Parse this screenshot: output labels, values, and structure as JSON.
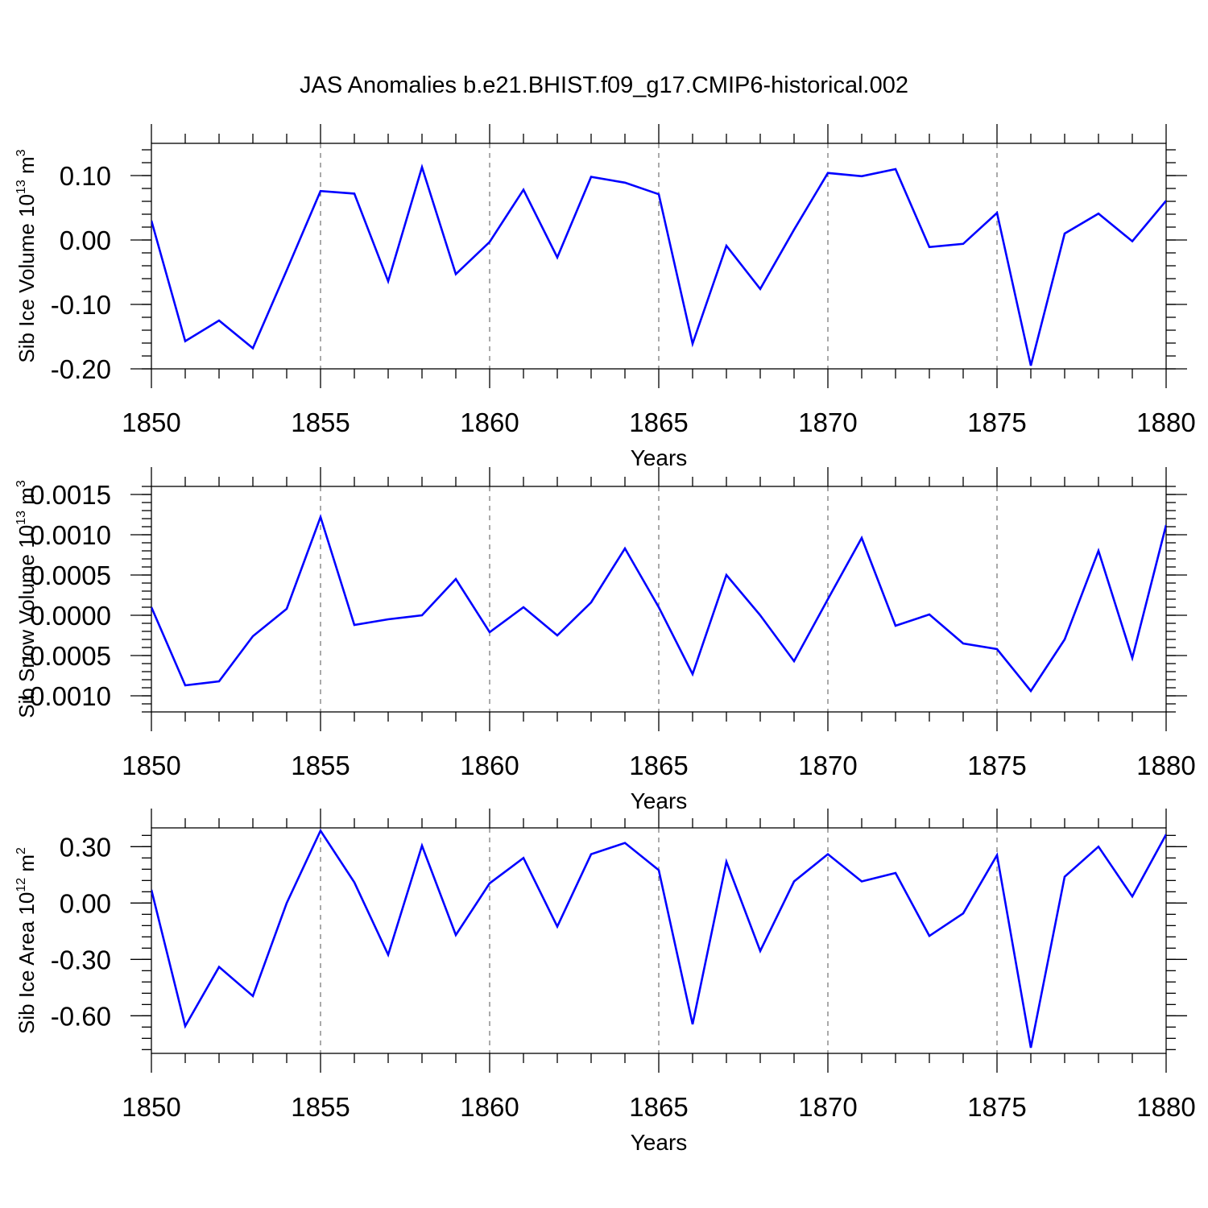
{
  "figure": {
    "title": "JAS Anomalies b.e21.BHIST.f09_g17.CMIP6-historical.002",
    "series_color": "#0000ff"
  },
  "chart_data": [
    {
      "type": "line",
      "title": "JAS Anomalies b.e21.BHIST.f09_g17.CMIP6-historical.002",
      "xlabel": "Years",
      "ylabel": "Sib Ice Volume 10",
      "ylabel_exp": "13",
      "ylabel_unit": " m",
      "ylabel_unit_exp": "3",
      "x": [
        1850,
        1851,
        1852,
        1853,
        1854,
        1855,
        1856,
        1857,
        1858,
        1859,
        1860,
        1861,
        1862,
        1863,
        1864,
        1865,
        1866,
        1867,
        1868,
        1869,
        1870,
        1871,
        1872,
        1873,
        1874,
        1875,
        1876,
        1877,
        1878,
        1879,
        1880
      ],
      "values": [
        0.03,
        -0.157,
        -0.125,
        -0.168,
        -0.047,
        0.076,
        0.072,
        -0.064,
        0.113,
        -0.053,
        -0.003,
        0.078,
        -0.027,
        0.098,
        0.089,
        0.071,
        -0.161,
        -0.009,
        -0.076,
        0.016,
        0.104,
        0.099,
        0.11,
        -0.011,
        -0.006,
        0.042,
        -0.195,
        0.01,
        0.041,
        -0.002,
        0.061
      ],
      "xlim": [
        1850,
        1880
      ],
      "ylim": [
        -0.2,
        0.15
      ],
      "yticks": [
        -0.2,
        -0.1,
        0.0,
        0.1
      ],
      "ytick_labels": [
        "-0.20",
        "-0.10",
        "0.00",
        "0.10"
      ],
      "yminor_step": 0.02,
      "xticks": [
        1850,
        1855,
        1860,
        1865,
        1870,
        1875,
        1880
      ],
      "xtick_labels": [
        "1850",
        "1855",
        "1860",
        "1865",
        "1870",
        "1875",
        "1880"
      ],
      "grid": "vertical dashed"
    },
    {
      "type": "line",
      "xlabel": "Years",
      "ylabel": "Sib Snow Volume 10",
      "ylabel_exp": "13",
      "ylabel_unit": " m",
      "ylabel_unit_exp": "3",
      "x": [
        1850,
        1851,
        1852,
        1853,
        1854,
        1855,
        1856,
        1857,
        1858,
        1859,
        1860,
        1861,
        1862,
        1863,
        1864,
        1865,
        1866,
        1867,
        1868,
        1869,
        1870,
        1871,
        1872,
        1873,
        1874,
        1875,
        1876,
        1877,
        1878,
        1879,
        1880
      ],
      "values": [
        0.0001,
        -0.00087,
        -0.00082,
        -0.00026,
        8e-05,
        0.00122,
        -0.00012,
        -5e-05,
        0.0,
        0.00045,
        -0.00021,
        0.0001,
        -0.00025,
        0.00016,
        0.00083,
        0.0001,
        -0.00073,
        0.0005,
        0.0,
        -0.00057,
        0.0002,
        0.00096,
        -0.00013,
        1e-05,
        -0.00035,
        -0.00042,
        -0.00094,
        -0.0003,
        0.0008,
        -0.00053,
        0.00112
      ],
      "xlim": [
        1850,
        1880
      ],
      "ylim": [
        -0.0012,
        0.0016
      ],
      "yticks": [
        -0.001,
        -0.0005,
        0.0,
        0.0005,
        0.001,
        0.0015
      ],
      "ytick_labels": [
        "-0.0010",
        "-0.0005",
        "0.0000",
        "0.0005",
        "0.0010",
        "0.0015"
      ],
      "yminor_step": 0.0001,
      "xticks": [
        1850,
        1855,
        1860,
        1865,
        1870,
        1875,
        1880
      ],
      "xtick_labels": [
        "1850",
        "1855",
        "1860",
        "1865",
        "1870",
        "1875",
        "1880"
      ],
      "grid": "vertical dashed"
    },
    {
      "type": "line",
      "xlabel": "Years",
      "ylabel": "Sib Ice Area 10",
      "ylabel_exp": "12",
      "ylabel_unit": " m",
      "ylabel_unit_exp": "2",
      "x": [
        1850,
        1851,
        1852,
        1853,
        1854,
        1855,
        1856,
        1857,
        1858,
        1859,
        1860,
        1861,
        1862,
        1863,
        1864,
        1865,
        1866,
        1867,
        1868,
        1869,
        1870,
        1871,
        1872,
        1873,
        1874,
        1875,
        1876,
        1877,
        1878,
        1879,
        1880
      ],
      "values": [
        0.07,
        -0.655,
        -0.34,
        -0.495,
        0.0,
        0.385,
        0.11,
        -0.275,
        0.305,
        -0.17,
        0.105,
        0.24,
        -0.125,
        0.26,
        0.32,
        0.175,
        -0.645,
        0.22,
        -0.255,
        0.115,
        0.26,
        0.115,
        0.16,
        -0.175,
        -0.055,
        0.255,
        -0.77,
        0.14,
        0.3,
        0.035,
        0.365
      ],
      "xlim": [
        1850,
        1880
      ],
      "ylim": [
        -0.8,
        0.4
      ],
      "yticks": [
        -0.6,
        -0.3,
        0.0,
        0.3
      ],
      "ytick_labels": [
        "-0.60",
        "-0.30",
        "0.00",
        "0.30"
      ],
      "yminor_step": 0.06,
      "xticks": [
        1850,
        1855,
        1860,
        1865,
        1870,
        1875,
        1880
      ],
      "xtick_labels": [
        "1850",
        "1855",
        "1860",
        "1865",
        "1870",
        "1875",
        "1880"
      ],
      "grid": "vertical dashed"
    }
  ]
}
